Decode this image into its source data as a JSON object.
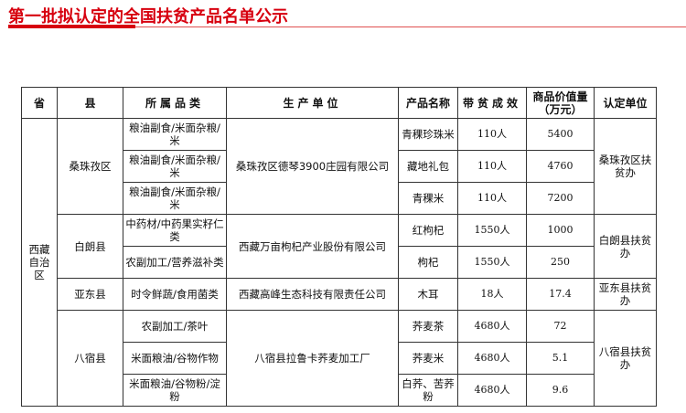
{
  "title": "第一批拟认定的全国扶贫产品名单公示",
  "headers": [
    "省",
    "县",
    "所属品类",
    "生产单位",
    "产品名称",
    "带贫成效",
    "商品价值量（万元）",
    "认定单位"
  ],
  "province": "西藏自治区",
  "groups": [
    {
      "county": "桑珠孜区",
      "producer": "桑珠孜区德琴3900庄园有限公司",
      "certifier": "桑珠孜区扶贫办",
      "rows": [
        {
          "category": "粮油副食/米面杂粮/米",
          "product": "青稞珍珠米",
          "effect": "110人",
          "value": "5400"
        },
        {
          "category": "粮油副食/米面杂粮/米",
          "product": "藏地礼包",
          "effect": "110人",
          "value": "4760"
        },
        {
          "category": "粮油副食/米面杂粮/米",
          "product": "青稞米",
          "effect": "110人",
          "value": "7200"
        }
      ]
    },
    {
      "county": "白朗县",
      "producer": "西藏万亩枸杞产业股份有限公司",
      "certifier": "白朗县扶贫办",
      "rows": [
        {
          "category": "中药材/中药果实籽仁类",
          "product": "红枸杞",
          "effect": "1550人",
          "value": "1000"
        },
        {
          "category": "农副加工/营养滋补类",
          "product": "枸杞",
          "effect": "1550人",
          "value": "250"
        }
      ]
    },
    {
      "county": "亚东县",
      "producer": "西藏高峰生态科技有限责任公司",
      "certifier": "亚东县扶贫办",
      "rows": [
        {
          "category": "时令鲜蔬/食用菌类",
          "product": "木耳",
          "effect": "18人",
          "value": "17.4"
        }
      ]
    },
    {
      "county": "八宿县",
      "producer": "八宿县拉鲁卡荞麦加工厂",
      "certifier": "八宿县扶贫办",
      "rows": [
        {
          "category": "农副加工/茶叶",
          "product": "荞麦茶",
          "effect": "4680人",
          "value": "72"
        },
        {
          "category": "米面粮油/谷物作物",
          "product": "荞麦米",
          "effect": "4680人",
          "value": "5.1"
        },
        {
          "category": "米面粮油/谷物粉/淀粉",
          "product": "白荞、苦荞粉",
          "effect": "4680人",
          "value": "9.6"
        }
      ]
    }
  ],
  "colors": {
    "accent": "#d7000f"
  }
}
